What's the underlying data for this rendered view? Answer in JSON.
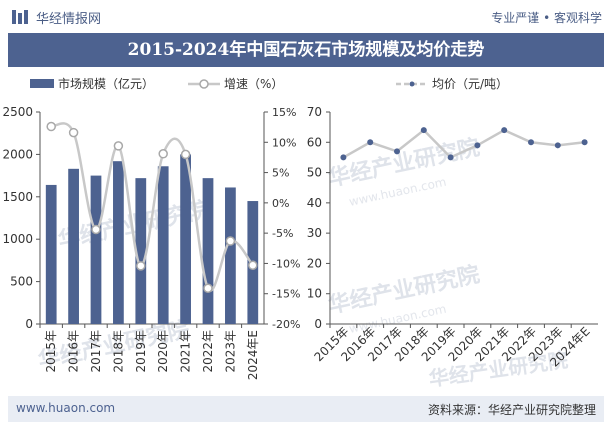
{
  "header": {
    "brand": "华经情报网",
    "tagline": "专业严谨 • 客观科学",
    "title": "2015-2024年中国石灰石市场规模及均价走势"
  },
  "footer": {
    "website": "www.huaon.com",
    "source": "资料来源：华经产业研究院整理"
  },
  "watermark": {
    "cn": "华经产业研究院",
    "en": "www.huaon.com"
  },
  "colors": {
    "bar": "#4d6290",
    "growth_line": "#c8c8c8",
    "price_line": "#c8c8c8",
    "marker_stroke": "#a8a8a8",
    "header_bg": "#4d6290"
  },
  "chart_data": [
    {
      "type": "bar",
      "categories": [
        "2015年",
        "2016年",
        "2017年",
        "2018年",
        "2019年",
        "2020年",
        "2021年",
        "2022年",
        "2023年",
        "2024年E"
      ],
      "series": [
        {
          "name": "市场规模（亿元）",
          "type": "bar",
          "axis": "left",
          "values": [
            1640,
            1830,
            1750,
            1920,
            1720,
            1860,
            2000,
            1720,
            1610,
            1450
          ]
        },
        {
          "name": "增速（%）",
          "type": "line",
          "axis": "right",
          "values": [
            12.6,
            11.6,
            -4.4,
            9.4,
            -10.4,
            8.1,
            8.0,
            -14.1,
            -6.3,
            -10.3
          ]
        }
      ],
      "ylim_left": [
        0,
        2500
      ],
      "yticks_left": [
        "0",
        "500",
        "1000",
        "1500",
        "2000",
        "2500"
      ],
      "ylim_right": [
        -20,
        15
      ],
      "yticks_right": [
        "-20%",
        "-15%",
        "-10%",
        "-5%",
        "0%",
        "5%",
        "10%",
        "15%"
      ],
      "legend_position": "top"
    },
    {
      "type": "line",
      "categories": [
        "2015年",
        "2016年",
        "2017年",
        "2018年",
        "2019年",
        "2020年",
        "2021年",
        "2022年",
        "2023年",
        "2024年E"
      ],
      "series": [
        {
          "name": "均价（元/吨）",
          "values": [
            55,
            60,
            57,
            64,
            55,
            59,
            64,
            60,
            59,
            60
          ]
        }
      ],
      "ylim": [
        0,
        70
      ],
      "yticks": [
        "0",
        "10",
        "20",
        "30",
        "40",
        "50",
        "60",
        "70"
      ],
      "legend_position": "top"
    }
  ]
}
